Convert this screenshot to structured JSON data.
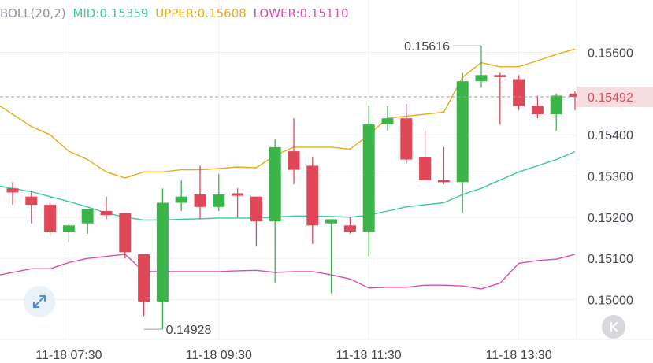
{
  "legend": {
    "boll": "BOLL(20,2)",
    "mid": "MID:0.15359",
    "upper": "UPPER:0.15608",
    "lower": "LOWER:0.15110"
  },
  "colors": {
    "up": "#3bb54a",
    "down": "#e04857",
    "mid": "#3bc9a5",
    "upper": "#e6ad14",
    "lower": "#d94fb0",
    "boll_label": "#8e959d",
    "grid": "#eef0f2",
    "axis_text": "#41464d",
    "price_tag_bg": "#f6dde0",
    "price_tag_text": "#e04857",
    "expand_icon": "#4a8fe0",
    "rewind_icon": "#ffffff"
  },
  "icons": {
    "expand": "expand-arrows-icon",
    "rewind": "rewind-to-start-icon"
  },
  "chart_data": {
    "type": "candlestick",
    "ylim": [
      0.1494,
      0.1563
    ],
    "y_ticks": [
      0.15,
      0.151,
      0.152,
      0.153,
      0.154,
      0.156
    ],
    "y_tick_labels": [
      "0.15000",
      "0.15100",
      "0.15200",
      "0.15300",
      "0.15400",
      "0.15600"
    ],
    "x_tick_labels": [
      {
        "index": 3,
        "label": "11-18 07:30"
      },
      {
        "index": 11,
        "label": "11-18 09:30"
      },
      {
        "index": 19,
        "label": "11-18 11:30"
      },
      {
        "index": 27,
        "label": "11-18 13:30"
      }
    ],
    "current_price": 0.15492,
    "current_price_label": "0.15492",
    "high_annotation": {
      "index": 25,
      "value": 0.15616,
      "label": "0.15616"
    },
    "low_annotation": {
      "index": 7,
      "value": 0.14928,
      "label": "0.14928"
    },
    "candles": [
      {
        "open": 0.1527,
        "high": 0.15285,
        "low": 0.1523,
        "close": 0.1526
      },
      {
        "open": 0.1525,
        "high": 0.15265,
        "low": 0.15185,
        "close": 0.1523
      },
      {
        "open": 0.1523,
        "high": 0.15235,
        "low": 0.15155,
        "close": 0.15165
      },
      {
        "open": 0.15165,
        "high": 0.15185,
        "low": 0.1514,
        "close": 0.1518
      },
      {
        "open": 0.15185,
        "high": 0.1522,
        "low": 0.1516,
        "close": 0.1522
      },
      {
        "open": 0.15215,
        "high": 0.1525,
        "low": 0.15195,
        "close": 0.15205
      },
      {
        "open": 0.1521,
        "high": 0.1521,
        "low": 0.151,
        "close": 0.15115
      },
      {
        "open": 0.1511,
        "high": 0.1511,
        "low": 0.1496,
        "close": 0.14995
      },
      {
        "open": 0.14995,
        "high": 0.1527,
        "low": 0.14928,
        "close": 0.15235
      },
      {
        "open": 0.15235,
        "high": 0.1529,
        "low": 0.15215,
        "close": 0.1525
      },
      {
        "open": 0.15255,
        "high": 0.15325,
        "low": 0.15195,
        "close": 0.15225
      },
      {
        "open": 0.15225,
        "high": 0.15305,
        "low": 0.15215,
        "close": 0.15255
      },
      {
        "open": 0.15258,
        "high": 0.1527,
        "low": 0.152,
        "close": 0.15252
      },
      {
        "open": 0.1525,
        "high": 0.1525,
        "low": 0.1513,
        "close": 0.1519
      },
      {
        "open": 0.1519,
        "high": 0.1539,
        "low": 0.1504,
        "close": 0.1537
      },
      {
        "open": 0.1536,
        "high": 0.1544,
        "low": 0.1528,
        "close": 0.15315
      },
      {
        "open": 0.15325,
        "high": 0.15345,
        "low": 0.15135,
        "close": 0.1518
      },
      {
        "open": 0.15185,
        "high": 0.1519,
        "low": 0.15015,
        "close": 0.15195
      },
      {
        "open": 0.1518,
        "high": 0.152,
        "low": 0.1516,
        "close": 0.15165
      },
      {
        "open": 0.15165,
        "high": 0.1547,
        "low": 0.15105,
        "close": 0.15425
      },
      {
        "open": 0.15425,
        "high": 0.1547,
        "low": 0.1541,
        "close": 0.1544
      },
      {
        "open": 0.1544,
        "high": 0.15475,
        "low": 0.1533,
        "close": 0.1534
      },
      {
        "open": 0.15345,
        "high": 0.1541,
        "low": 0.1529,
        "close": 0.1529
      },
      {
        "open": 0.1529,
        "high": 0.1537,
        "low": 0.1528,
        "close": 0.15285
      },
      {
        "open": 0.15285,
        "high": 0.1555,
        "low": 0.1521,
        "close": 0.1553
      },
      {
        "open": 0.1553,
        "high": 0.15616,
        "low": 0.15515,
        "close": 0.15545
      },
      {
        "open": 0.15545,
        "high": 0.1555,
        "low": 0.15425,
        "close": 0.1554
      },
      {
        "open": 0.15535,
        "high": 0.15545,
        "low": 0.1546,
        "close": 0.1547
      },
      {
        "open": 0.1547,
        "high": 0.15495,
        "low": 0.1544,
        "close": 0.1545
      },
      {
        "open": 0.1545,
        "high": 0.155,
        "low": 0.1541,
        "close": 0.15495
      },
      {
        "open": 0.155,
        "high": 0.15505,
        "low": 0.1546,
        "close": 0.15492
      }
    ],
    "series": [
      {
        "name": "UPPER",
        "values": [
          0.1547,
          0.1542,
          0.154,
          0.1536,
          0.1534,
          0.1531,
          0.15295,
          0.1531,
          0.1531,
          0.15315,
          0.15315,
          0.15318,
          0.15322,
          0.1532,
          0.1535,
          0.1537,
          0.1537,
          0.1537,
          0.15365,
          0.154,
          0.1544,
          0.15445,
          0.1545,
          0.15455,
          0.1554,
          0.15575,
          0.15565,
          0.15565,
          0.1558,
          0.15595,
          0.15608
        ]
      },
      {
        "name": "MID",
        "values": [
          0.15275,
          0.15262,
          0.1525,
          0.15238,
          0.15225,
          0.1521,
          0.152,
          0.15193,
          0.15193,
          0.15195,
          0.15196,
          0.15198,
          0.15198,
          0.15198,
          0.152,
          0.15203,
          0.15203,
          0.15202,
          0.152,
          0.15205,
          0.15215,
          0.15225,
          0.1523,
          0.15235,
          0.15255,
          0.1527,
          0.1529,
          0.1531,
          0.15325,
          0.1534,
          0.15359
        ]
      },
      {
        "name": "LOWER",
        "values": [
          0.1506,
          0.15075,
          0.15075,
          0.1509,
          0.151,
          0.15105,
          0.1511,
          0.15068,
          0.15068,
          0.15068,
          0.15068,
          0.15068,
          0.1507,
          0.15071,
          0.15066,
          0.15068,
          0.15068,
          0.1506,
          0.1505,
          0.15028,
          0.1503,
          0.1503,
          0.15035,
          0.15035,
          0.15033,
          0.15026,
          0.1504,
          0.15088,
          0.15095,
          0.15098,
          0.1511
        ]
      }
    ]
  }
}
